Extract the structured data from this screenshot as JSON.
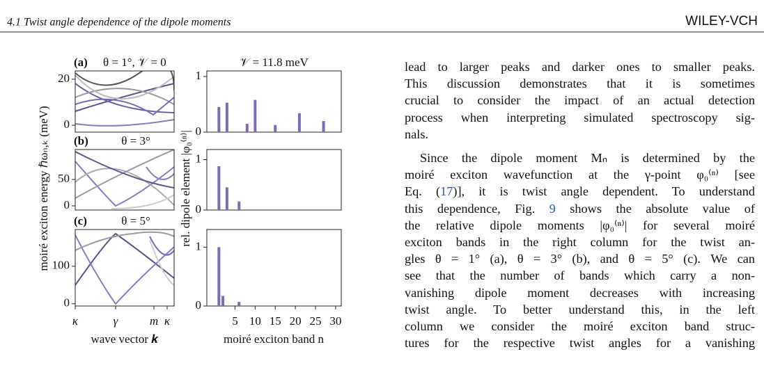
{
  "header": {
    "section": "4.1   Twist angle dependence of the dipole moments",
    "publisher": "WILEY-VCH"
  },
  "figure": {
    "bar_color": "#7e6bb5",
    "left": {
      "ylabel": "moiré exciton energy ℏωₙ,ₖ (meV)",
      "xlabel": "wave vector 𝒌",
      "xticks": [
        "κ",
        "γ",
        "m",
        "κ"
      ],
      "panels": [
        {
          "label": "(a)",
          "title": "θ = 1°, 𝒱 = 0",
          "ylim": [
            -3,
            23.6
          ],
          "yticks": [
            0,
            20
          ]
        },
        {
          "label": "(b)",
          "title": "θ = 3°",
          "ylim": [
            -8,
            107
          ],
          "yticks": [
            0,
            50
          ]
        },
        {
          "label": "(c)",
          "title": "θ = 5°",
          "ylim": [
            -6,
            198
          ],
          "yticks": [
            0,
            100
          ]
        }
      ]
    },
    "right": {
      "ylabel": "rel. dipole element |φ₀⁽ⁿ⁾|",
      "xlabel": "moiré exciton band n",
      "xlim": [
        -2,
        31.4
      ],
      "xticks": [
        5,
        10,
        15,
        20,
        25,
        30
      ],
      "panels": [
        {
          "title": "𝒱 = 11.8 meV",
          "ylim": [
            0,
            1.1
          ],
          "yticks": [
            0,
            1
          ],
          "n": [
            1,
            3,
            8,
            10,
            15,
            21,
            27
          ],
          "values": [
            0.45,
            0.53,
            0.15,
            0.58,
            0.13,
            0.34,
            0.2
          ]
        },
        {
          "ylim": [
            0,
            1.2
          ],
          "yticks": [
            0,
            1
          ],
          "n": [
            1,
            3,
            6
          ],
          "values": [
            0.87,
            0.45,
            0.17
          ]
        },
        {
          "ylim": [
            0,
            1.3
          ],
          "yticks": [
            0,
            1
          ],
          "n": [
            1,
            2,
            6
          ],
          "values": [
            1.0,
            0.17,
            0.07
          ]
        }
      ]
    }
  },
  "text": {
    "paragraphs": [
      {
        "lines": [
          "lead to larger peaks and darker ones to smaller peaks.",
          "This discussion demonstrates that it is sometimes",
          "crucial to consider the impact of an actual detection",
          "process when interpreting simulated spectroscopy sig-",
          "nals."
        ]
      },
      {
        "lines": [
          "Since the dipole moment Mₙ is determined by the",
          "moiré exciton wavefunction at the γ-point φ₀⁽ⁿ⁾ [see",
          [
            "Eq. (",
            "17",
            ")], it is twist angle dependent. To understand"
          ],
          [
            "this dependence, Fig. ",
            "9",
            " shows the absolute value of"
          ],
          "the relative dipole moments |φ₀⁽ⁿ⁾| for several moiré",
          "exciton bands in the right column for the twist an-",
          "gles θ = 1° (a), θ = 3° (b), and θ = 5° (c). We can",
          "see that the number of bands which carry a non-",
          "vanishing dipole moment decreases with increasing",
          "twist angle. To better understand this, in the left",
          "column we consider the moiré exciton band struc-",
          "tures for the respective twist angles for a vanishing"
        ]
      }
    ]
  }
}
